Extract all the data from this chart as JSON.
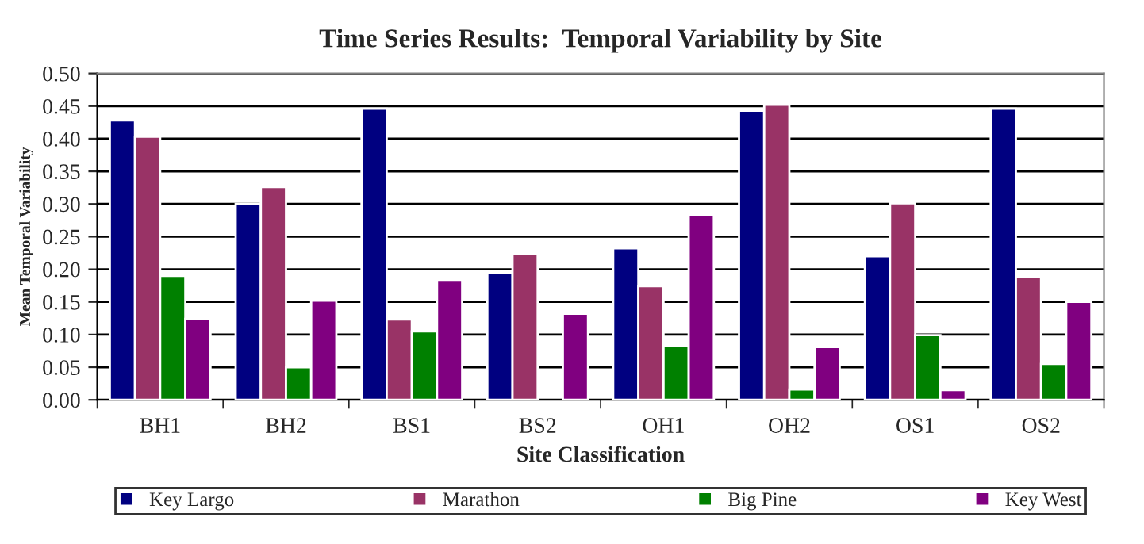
{
  "chart_data": {
    "type": "bar",
    "title": "Time Series Results:  Temporal Variability by Site",
    "xlabel": "Site Classification",
    "ylabel": "Mean Temporal Variability",
    "categories": [
      "BH1",
      "BH2",
      "BS1",
      "BS2",
      "OH1",
      "OH2",
      "OS1",
      "OS2"
    ],
    "series": [
      {
        "name": "Key Largo",
        "color": "#000080",
        "values": [
          0.428,
          0.3,
          0.446,
          0.195,
          0.232,
          0.443,
          0.22,
          0.446
        ]
      },
      {
        "name": "Marathon",
        "color": "#993366",
        "values": [
          0.403,
          0.326,
          0.123,
          0.223,
          0.174,
          0.452,
          0.301,
          0.189
        ]
      },
      {
        "name": "Big Pine",
        "color": "#008000",
        "values": [
          0.19,
          0.05,
          0.105,
          null,
          0.083,
          0.016,
          0.099,
          0.055
        ]
      },
      {
        "name": "Key West",
        "color": "#800080",
        "values": [
          0.124,
          0.152,
          0.184,
          0.132,
          0.283,
          0.081,
          0.015,
          0.15
        ]
      }
    ],
    "ylim": [
      0,
      0.5
    ],
    "yticks": [
      {
        "value": 0,
        "label": "0.00"
      },
      {
        "value": 0.05,
        "label": "0.05"
      },
      {
        "value": 0.1,
        "label": "0.10"
      },
      {
        "value": 0.15,
        "label": "0.15"
      },
      {
        "value": 0.2,
        "label": "0.20"
      },
      {
        "value": 0.25,
        "label": "0.25"
      },
      {
        "value": 0.3,
        "label": "0.30"
      },
      {
        "value": 0.35,
        "label": "0.35"
      },
      {
        "value": 0.4,
        "label": "0.40"
      },
      {
        "value": 0.45,
        "label": "0.45"
      },
      {
        "value": 0.5,
        "label": "0.50"
      }
    ],
    "grid": "y",
    "legend": "bottom"
  }
}
